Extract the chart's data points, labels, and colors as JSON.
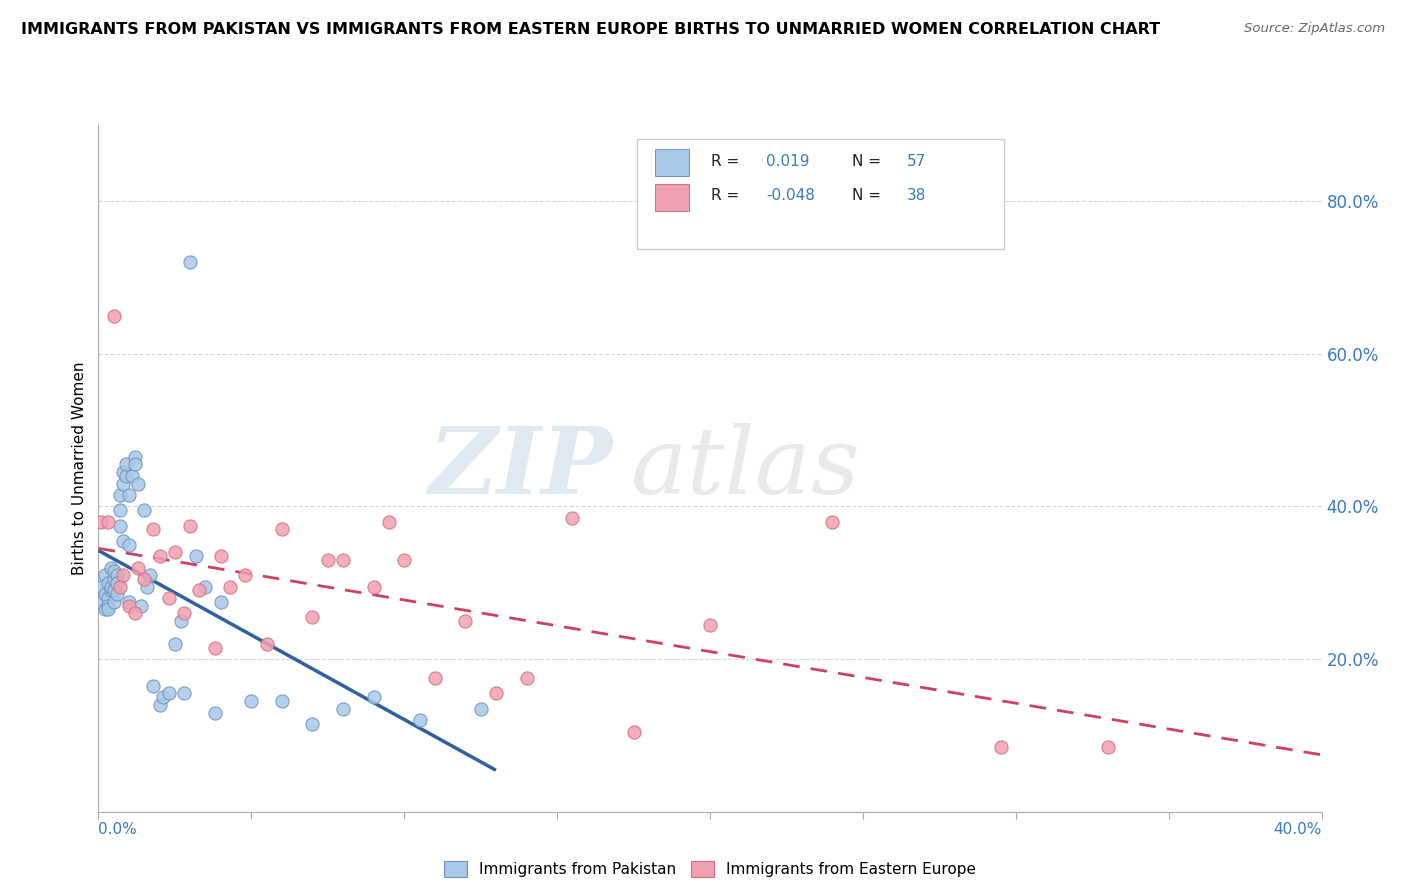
{
  "title": "IMMIGRANTS FROM PAKISTAN VS IMMIGRANTS FROM EASTERN EUROPE BIRTHS TO UNMARRIED WOMEN CORRELATION CHART",
  "source": "Source: ZipAtlas.com",
  "ylabel": "Births to Unmarried Women",
  "y_ticks": [
    0.2,
    0.4,
    0.6,
    0.8
  ],
  "y_tick_labels": [
    "20.0%",
    "40.0%",
    "60.0%",
    "80.0%"
  ],
  "x_range": [
    0.0,
    0.4
  ],
  "y_range": [
    0.0,
    0.9
  ],
  "legend_blue_r": "0.019",
  "legend_blue_n": "57",
  "legend_pink_r": "-0.048",
  "legend_pink_n": "38",
  "blue_color": "#a8c8e8",
  "pink_color": "#f0a0b0",
  "blue_line_color": "#3060a0",
  "pink_line_color": "#d04060",
  "blue_dot_edge": "#7090c0",
  "pink_dot_edge": "#d07080",
  "watermark_zip": "ZIP",
  "watermark_atlas": "atlas",
  "pakistan_x": [
    0.001,
    0.001,
    0.002,
    0.002,
    0.002,
    0.003,
    0.003,
    0.003,
    0.003,
    0.004,
    0.004,
    0.004,
    0.005,
    0.005,
    0.005,
    0.005,
    0.006,
    0.006,
    0.006,
    0.007,
    0.007,
    0.007,
    0.008,
    0.008,
    0.008,
    0.009,
    0.009,
    0.01,
    0.01,
    0.01,
    0.011,
    0.012,
    0.012,
    0.013,
    0.014,
    0.015,
    0.016,
    0.017,
    0.018,
    0.02,
    0.021,
    0.023,
    0.025,
    0.027,
    0.028,
    0.03,
    0.032,
    0.035,
    0.038,
    0.04,
    0.05,
    0.06,
    0.07,
    0.08,
    0.09,
    0.105,
    0.125
  ],
  "pakistan_y": [
    0.295,
    0.275,
    0.31,
    0.285,
    0.265,
    0.3,
    0.28,
    0.27,
    0.265,
    0.29,
    0.32,
    0.295,
    0.305,
    0.275,
    0.29,
    0.315,
    0.31,
    0.285,
    0.3,
    0.395,
    0.375,
    0.415,
    0.355,
    0.43,
    0.445,
    0.44,
    0.455,
    0.275,
    0.415,
    0.35,
    0.44,
    0.465,
    0.455,
    0.43,
    0.27,
    0.395,
    0.295,
    0.31,
    0.165,
    0.14,
    0.15,
    0.155,
    0.22,
    0.25,
    0.155,
    0.72,
    0.335,
    0.295,
    0.13,
    0.275,
    0.145,
    0.145,
    0.115,
    0.135,
    0.15,
    0.12,
    0.135
  ],
  "eastern_europe_x": [
    0.001,
    0.003,
    0.005,
    0.007,
    0.008,
    0.01,
    0.012,
    0.013,
    0.015,
    0.018,
    0.02,
    0.023,
    0.025,
    0.028,
    0.03,
    0.033,
    0.038,
    0.04,
    0.043,
    0.048,
    0.055,
    0.06,
    0.07,
    0.075,
    0.08,
    0.09,
    0.095,
    0.1,
    0.11,
    0.12,
    0.13,
    0.14,
    0.155,
    0.175,
    0.2,
    0.24,
    0.295,
    0.33
  ],
  "eastern_europe_y": [
    0.38,
    0.38,
    0.65,
    0.295,
    0.31,
    0.27,
    0.26,
    0.32,
    0.305,
    0.37,
    0.335,
    0.28,
    0.34,
    0.26,
    0.375,
    0.29,
    0.215,
    0.335,
    0.295,
    0.31,
    0.22,
    0.37,
    0.255,
    0.33,
    0.33,
    0.295,
    0.38,
    0.33,
    0.175,
    0.25,
    0.155,
    0.175,
    0.385,
    0.105,
    0.245,
    0.38,
    0.085,
    0.085
  ]
}
